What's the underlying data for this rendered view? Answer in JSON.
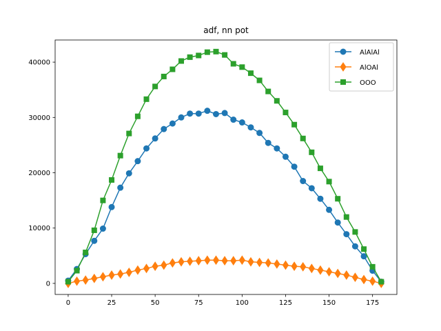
{
  "chart_data": {
    "type": "line",
    "title": "adf, nn pot",
    "xlabel": "",
    "ylabel": "",
    "xlim": [
      -7.5,
      189
    ],
    "ylim": [
      -2000,
      44000
    ],
    "xticks": [
      0,
      25,
      50,
      75,
      100,
      125,
      150,
      175
    ],
    "yticks": [
      0,
      10000,
      20000,
      30000,
      40000
    ],
    "legend_position": "top-right",
    "grid": false,
    "x": [
      0,
      5,
      10,
      15,
      20,
      25,
      30,
      35,
      40,
      45,
      50,
      55,
      60,
      65,
      70,
      75,
      80,
      85,
      90,
      95,
      100,
      105,
      110,
      115,
      120,
      125,
      130,
      135,
      140,
      145,
      150,
      155,
      160,
      165,
      170,
      175,
      180
    ],
    "series": [
      {
        "name": "AlAlAl",
        "color": "#1f77b4",
        "marker": "circle",
        "values": [
          500,
          2600,
          5300,
          7700,
          9900,
          13800,
          17300,
          19900,
          22100,
          24400,
          26200,
          27900,
          28900,
          30000,
          30700,
          30700,
          31200,
          30600,
          30800,
          29600,
          29100,
          28200,
          27200,
          25400,
          24400,
          22900,
          21100,
          18500,
          17200,
          15300,
          13300,
          11000,
          8900,
          6700,
          4900,
          2300,
          300
        ]
      },
      {
        "name": "AlOAl",
        "color": "#ff7f0e",
        "marker": "diamond",
        "values": [
          0,
          400,
          600,
          900,
          1200,
          1500,
          1700,
          2000,
          2400,
          2700,
          3100,
          3300,
          3700,
          3900,
          4000,
          4100,
          4200,
          4200,
          4100,
          4100,
          4200,
          3900,
          3800,
          3700,
          3500,
          3300,
          3100,
          3000,
          2700,
          2400,
          2100,
          1800,
          1500,
          1100,
          700,
          400,
          0
        ]
      },
      {
        "name": "OOO",
        "color": "#2ca02c",
        "marker": "square",
        "values": [
          300,
          2300,
          5600,
          9600,
          15000,
          18700,
          23100,
          27100,
          30200,
          33300,
          35600,
          37400,
          38700,
          40200,
          40900,
          41200,
          41800,
          41900,
          41300,
          39700,
          39100,
          38000,
          36700,
          34700,
          33000,
          30900,
          28700,
          26200,
          23700,
          20800,
          18400,
          15300,
          12000,
          9300,
          6200,
          3000,
          300
        ]
      }
    ]
  }
}
